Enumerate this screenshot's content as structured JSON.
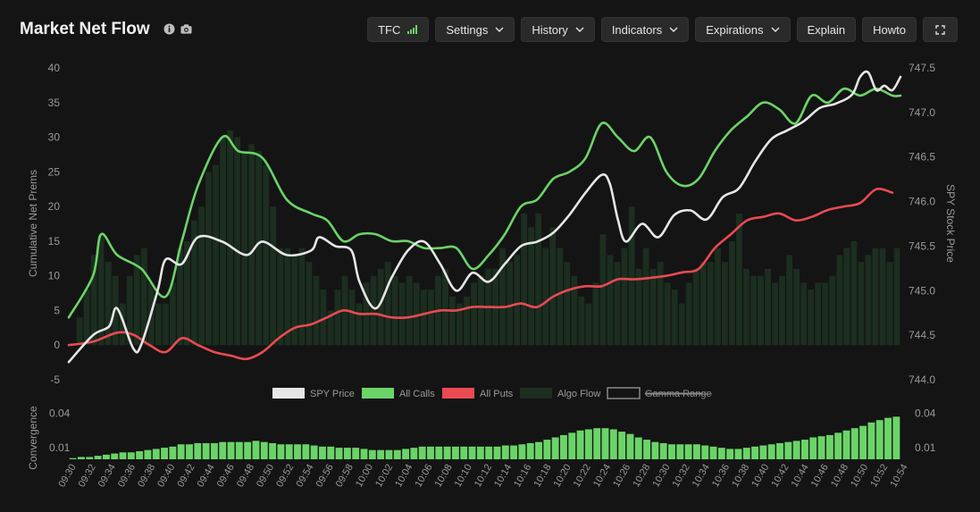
{
  "header": {
    "title": "Market Net Flow",
    "info_icon": "info-icon",
    "camera_icon": "camera-icon",
    "buttons": {
      "tfc": "TFC",
      "settings": "Settings",
      "history": "History",
      "indicators": "Indicators",
      "expirations": "Expirations",
      "explain": "Explain",
      "howto": "Howto"
    },
    "fullscreen_icon": "fullscreen-icon",
    "signal_icon": "signal-bars-icon",
    "chevron_icon": "chevron-down-icon"
  },
  "colors": {
    "background": "#141414",
    "spy": "#e6e6e6",
    "calls": "#6bd468",
    "puts": "#ea4a52",
    "algo": "#1b2e1f",
    "convergence": "#6bd468",
    "axis_text": "#9a9a9a"
  },
  "chart_data": [
    {
      "type": "line",
      "ylabel": "Cumulative Net Prems",
      "y2label": "SPY Stock Price",
      "ylim": [
        -5,
        40
      ],
      "yticks": [
        -5,
        0,
        5,
        10,
        15,
        20,
        25,
        30,
        35,
        40
      ],
      "y2lim": [
        744.0,
        747.5
      ],
      "y2ticks": [
        "744.0",
        "744.5",
        "745.0",
        "745.5",
        "746.0",
        "746.5",
        "747.0",
        "747.5"
      ],
      "grid": false,
      "legend_position": "bottom-center",
      "legend": [
        {
          "name": "SPY Price",
          "style": "spy"
        },
        {
          "name": "All Calls",
          "style": "calls"
        },
        {
          "name": "All Puts",
          "style": "puts"
        },
        {
          "name": "Algo Flow",
          "style": "algo"
        },
        {
          "name": "Gamma Range",
          "style": "gamma",
          "hidden": true
        }
      ],
      "x_start": "09:30",
      "x_step_minutes": 0.5,
      "x_labels": [
        "09:30",
        "09:32",
        "09:34",
        "09:36",
        "09:38",
        "09:40",
        "09:42",
        "09:44",
        "09:46",
        "09:48",
        "09:50",
        "09:52",
        "09:54",
        "09:56",
        "09:58",
        "10:00",
        "10:02",
        "10:04",
        "10:06",
        "10:08",
        "10:10",
        "10:12",
        "10:14",
        "10:16",
        "10:18",
        "10:20",
        "10:22",
        "10:24",
        "10:26",
        "10:28",
        "10:30",
        "10:32",
        "10:34",
        "10:36",
        "10:38",
        "10:40",
        "10:42",
        "10:44",
        "10:46",
        "10:48",
        "10:50",
        "10:52",
        "10:54"
      ],
      "series": [
        {
          "name": "Algo Flow",
          "type": "bar",
          "axis": "left",
          "values": [
            0,
            4,
            8,
            13,
            16,
            12,
            10,
            6,
            10,
            13,
            14,
            9,
            6,
            6,
            9,
            14,
            15,
            18,
            20,
            25,
            26,
            30,
            31,
            30,
            28,
            29,
            28,
            26,
            20,
            14,
            14,
            13,
            14,
            12,
            10,
            8,
            5,
            8,
            10,
            8,
            6,
            9,
            10,
            11,
            12,
            10,
            9,
            10,
            9,
            8,
            8,
            10,
            11,
            7,
            6,
            7,
            9,
            10,
            11,
            11,
            14,
            12,
            13,
            19,
            17,
            19,
            14,
            17,
            14,
            12,
            10,
            7,
            6,
            9,
            16,
            13,
            12,
            14,
            20,
            11,
            14,
            11,
            12,
            9,
            8,
            6,
            9,
            11,
            12,
            12,
            14,
            12,
            15,
            19,
            11,
            10,
            10,
            11,
            9,
            10,
            13,
            11,
            9,
            8,
            9,
            9,
            10,
            13,
            14,
            15,
            12,
            13,
            14,
            14,
            12,
            14
          ]
        },
        {
          "name": "SPY Price",
          "type": "line",
          "axis": "right",
          "points": [
            [
              0,
              744.2
            ],
            [
              3,
              744.5
            ],
            [
              5,
              744.6
            ],
            [
              6,
              744.8
            ],
            [
              8,
              744.35
            ],
            [
              9,
              744.4
            ],
            [
              11,
              745.0
            ],
            [
              12,
              745.35
            ],
            [
              14,
              745.3
            ],
            [
              16,
              745.6
            ],
            [
              19,
              745.55
            ],
            [
              22,
              745.4
            ],
            [
              24,
              745.55
            ],
            [
              27,
              745.4
            ],
            [
              30,
              745.45
            ],
            [
              31,
              745.6
            ],
            [
              33,
              745.5
            ],
            [
              35,
              745.45
            ],
            [
              36,
              745.1
            ],
            [
              38,
              744.8
            ],
            [
              40,
              745.15
            ],
            [
              42,
              745.45
            ],
            [
              44,
              745.55
            ],
            [
              46,
              745.3
            ],
            [
              48,
              745.0
            ],
            [
              50,
              745.2
            ],
            [
              52,
              745.1
            ],
            [
              54,
              745.3
            ],
            [
              56,
              745.5
            ],
            [
              58,
              745.55
            ],
            [
              60,
              745.65
            ],
            [
              62,
              745.85
            ],
            [
              64,
              746.1
            ],
            [
              66,
              746.3
            ],
            [
              67,
              746.2
            ],
            [
              68,
              745.8
            ],
            [
              69,
              745.55
            ],
            [
              71,
              745.75
            ],
            [
              73,
              745.6
            ],
            [
              75,
              745.85
            ],
            [
              77,
              745.9
            ],
            [
              79,
              745.8
            ],
            [
              81,
              746.05
            ],
            [
              83,
              746.15
            ],
            [
              85,
              746.45
            ],
            [
              87,
              746.7
            ],
            [
              89,
              746.8
            ],
            [
              91,
              746.9
            ],
            [
              93,
              747.05
            ],
            [
              95,
              747.1
            ],
            [
              97,
              747.2
            ],
            [
              98,
              747.4
            ],
            [
              99,
              747.45
            ],
            [
              100,
              747.25
            ],
            [
              101,
              747.3
            ],
            [
              102,
              747.25
            ],
            [
              103,
              747.4
            ]
          ]
        },
        {
          "name": "All Calls",
          "type": "line",
          "axis": "left",
          "points": [
            [
              0,
              4
            ],
            [
              3,
              10
            ],
            [
              4,
              16
            ],
            [
              6,
              13
            ],
            [
              9,
              11
            ],
            [
              12,
              7
            ],
            [
              14,
              15
            ],
            [
              16,
              23
            ],
            [
              19,
              30
            ],
            [
              21,
              28
            ],
            [
              24,
              27
            ],
            [
              27,
              21
            ],
            [
              30,
              19
            ],
            [
              32,
              18
            ],
            [
              34,
              15
            ],
            [
              36,
              16
            ],
            [
              38,
              16
            ],
            [
              40,
              15
            ],
            [
              42,
              15
            ],
            [
              44,
              14
            ],
            [
              46,
              14
            ],
            [
              48,
              14
            ],
            [
              50,
              11
            ],
            [
              52,
              13
            ],
            [
              54,
              16
            ],
            [
              56,
              20
            ],
            [
              58,
              21
            ],
            [
              60,
              24
            ],
            [
              62,
              25
            ],
            [
              64,
              27
            ],
            [
              66,
              32
            ],
            [
              68,
              30
            ],
            [
              70,
              28
            ],
            [
              72,
              30
            ],
            [
              74,
              25
            ],
            [
              76,
              23
            ],
            [
              78,
              24
            ],
            [
              80,
              28
            ],
            [
              82,
              31
            ],
            [
              84,
              33
            ],
            [
              86,
              35
            ],
            [
              88,
              34
            ],
            [
              90,
              32
            ],
            [
              92,
              36
            ],
            [
              94,
              35
            ],
            [
              96,
              37
            ],
            [
              98,
              36
            ],
            [
              100,
              37
            ],
            [
              102,
              36
            ],
            [
              103,
              36
            ]
          ]
        },
        {
          "name": "All Puts",
          "type": "line",
          "axis": "left",
          "points": [
            [
              0,
              0
            ],
            [
              3,
              0.5
            ],
            [
              6,
              1.8
            ],
            [
              8,
              1.5
            ],
            [
              10,
              0
            ],
            [
              12,
              -1
            ],
            [
              14,
              1
            ],
            [
              16,
              0
            ],
            [
              18,
              -1
            ],
            [
              20,
              -1.5
            ],
            [
              22,
              -2
            ],
            [
              24,
              -1
            ],
            [
              26,
              1
            ],
            [
              28,
              2.5
            ],
            [
              30,
              3
            ],
            [
              32,
              4
            ],
            [
              34,
              5
            ],
            [
              36,
              4.5
            ],
            [
              38,
              4.5
            ],
            [
              40,
              4
            ],
            [
              42,
              4
            ],
            [
              44,
              4.5
            ],
            [
              46,
              5
            ],
            [
              48,
              5
            ],
            [
              50,
              5.5
            ],
            [
              52,
              5.5
            ],
            [
              54,
              5.5
            ],
            [
              56,
              6
            ],
            [
              58,
              5.5
            ],
            [
              60,
              7
            ],
            [
              62,
              8
            ],
            [
              64,
              8.5
            ],
            [
              66,
              8.5
            ],
            [
              68,
              9.5
            ],
            [
              70,
              9.5
            ],
            [
              72,
              9.7
            ],
            [
              74,
              10
            ],
            [
              76,
              10.5
            ],
            [
              78,
              11
            ],
            [
              80,
              14
            ],
            [
              82,
              16
            ],
            [
              84,
              18
            ],
            [
              86,
              18.5
            ],
            [
              88,
              19
            ],
            [
              90,
              18
            ],
            [
              92,
              18.5
            ],
            [
              94,
              19.5
            ],
            [
              96,
              20
            ],
            [
              98,
              20.5
            ],
            [
              100,
              22.5
            ],
            [
              102,
              22
            ]
          ]
        }
      ]
    },
    {
      "type": "bar",
      "ylabel": "Convergence",
      "yticks": [
        "0.01",
        "0.04"
      ],
      "ylim": [
        0,
        0.045
      ],
      "series": [
        {
          "name": "Convergence",
          "values": [
            0.001,
            0.002,
            0.002,
            0.003,
            0.004,
            0.005,
            0.006,
            0.006,
            0.007,
            0.008,
            0.009,
            0.01,
            0.011,
            0.013,
            0.013,
            0.014,
            0.014,
            0.014,
            0.015,
            0.015,
            0.015,
            0.015,
            0.016,
            0.015,
            0.014,
            0.013,
            0.013,
            0.013,
            0.013,
            0.012,
            0.011,
            0.011,
            0.01,
            0.01,
            0.01,
            0.009,
            0.008,
            0.008,
            0.008,
            0.008,
            0.009,
            0.01,
            0.011,
            0.011,
            0.011,
            0.011,
            0.011,
            0.011,
            0.011,
            0.011,
            0.011,
            0.011,
            0.012,
            0.012,
            0.013,
            0.014,
            0.015,
            0.017,
            0.019,
            0.021,
            0.023,
            0.025,
            0.026,
            0.027,
            0.027,
            0.026,
            0.024,
            0.022,
            0.019,
            0.017,
            0.015,
            0.014,
            0.013,
            0.013,
            0.013,
            0.013,
            0.012,
            0.011,
            0.01,
            0.009,
            0.009,
            0.01,
            0.011,
            0.012,
            0.013,
            0.014,
            0.015,
            0.016,
            0.017,
            0.019,
            0.02,
            0.021,
            0.023,
            0.025,
            0.027,
            0.029,
            0.032,
            0.034,
            0.036,
            0.037
          ]
        }
      ]
    }
  ]
}
